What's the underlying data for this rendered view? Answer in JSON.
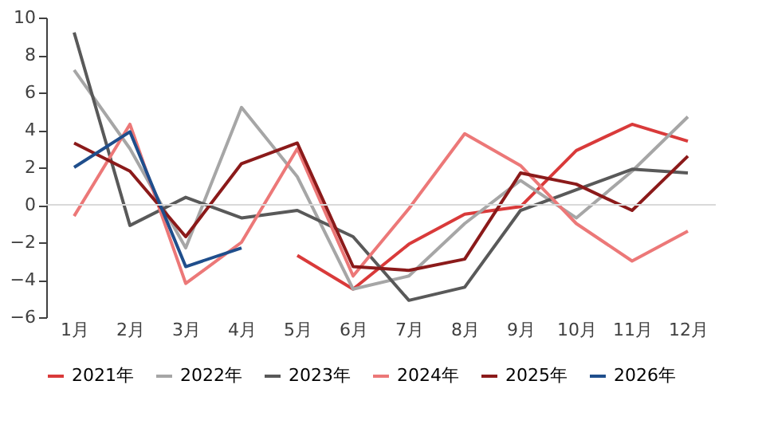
{
  "chart_data": {
    "type": "line",
    "categories": [
      "1月",
      "2月",
      "3月",
      "4月",
      "5月",
      "6月",
      "7月",
      "8月",
      "9月",
      "10月",
      "11月",
      "12月"
    ],
    "series": [
      {
        "name": "2021年",
        "color": "#d93a3a",
        "values": [
          null,
          null,
          null,
          null,
          -2.7,
          -4.5,
          -2.1,
          -0.5,
          -0.1,
          2.9,
          4.3,
          3.4
        ]
      },
      {
        "name": "2022年",
        "color": "#a6a6a6",
        "values": [
          7.2,
          3.0,
          -2.3,
          5.2,
          1.5,
          -4.5,
          -3.8,
          -1.0,
          1.3,
          -0.7,
          1.8,
          4.7
        ]
      },
      {
        "name": "2023年",
        "color": "#595959",
        "values": [
          9.2,
          -1.1,
          0.4,
          -0.7,
          -0.3,
          -1.7,
          -5.1,
          -4.4,
          -0.3,
          0.8,
          1.9,
          1.7
        ]
      },
      {
        "name": "2024年",
        "color": "#ec7878",
        "values": [
          -0.6,
          4.3,
          -4.2,
          -2.0,
          3.0,
          -3.8,
          -0.2,
          3.8,
          2.1,
          -1.0,
          -3.0,
          -1.4
        ]
      },
      {
        "name": "2025年",
        "color": "#8b1a1a",
        "values": [
          3.3,
          1.8,
          -1.7,
          2.2,
          3.3,
          -3.3,
          -3.5,
          -2.9,
          1.7,
          1.1,
          -0.3,
          2.6
        ]
      },
      {
        "name": "2026年",
        "color": "#1f4e8c",
        "values": [
          2.0,
          3.9,
          -3.3,
          -2.3,
          null,
          null,
          null,
          null,
          null,
          null,
          null,
          null
        ]
      }
    ],
    "ref_lines": [
      {
        "axis": "y",
        "value": 0,
        "color": "#d9d9d9"
      }
    ],
    "ylim": [
      -6,
      10
    ],
    "yticks": [
      -6,
      -4,
      -2,
      0,
      2,
      4,
      6,
      8,
      10
    ],
    "grid": false,
    "legend": "bottom",
    "marker": "none",
    "line_style": "solid"
  }
}
